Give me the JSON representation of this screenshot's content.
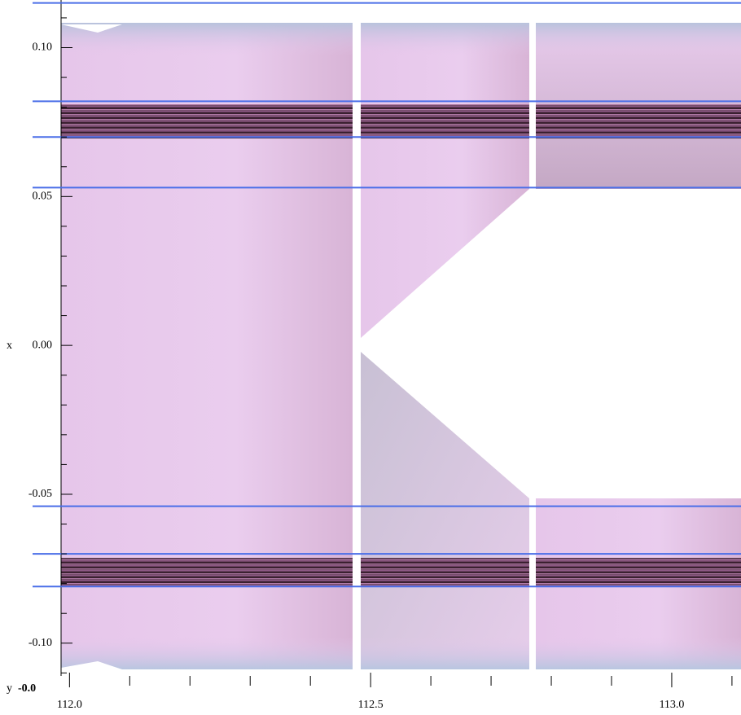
{
  "chart_data": {
    "type": "surface",
    "xlabel": "y",
    "ylabel": "x",
    "corner_label": "-0.0",
    "xlim": [
      111.986,
      113.115
    ],
    "ylim": [
      -0.111,
      0.116
    ],
    "xticks": [
      {
        "value": 112,
        "label": "112.0"
      },
      {
        "value": 112.5,
        "label": "112.5"
      },
      {
        "value": 113,
        "label": "113.0"
      }
    ],
    "xminorticks": [
      112.1,
      112.2,
      112.3,
      112.4,
      112.6,
      112.7,
      112.8,
      112.9,
      113.1
    ],
    "yticks": [
      {
        "value": 0.1,
        "label": "0.10"
      },
      0.05,
      {
        "value": 0,
        "label": "0.00"
      },
      -0.05,
      {
        "value": -0.1,
        "label": "-0.10"
      }
    ],
    "yminorticks": [
      0.11,
      0.09,
      0.08,
      0.07,
      0.06,
      0.04,
      0.03,
      0.02,
      0.01,
      -0.01,
      -0.02,
      -0.03,
      -0.04,
      -0.06,
      -0.07,
      -0.08,
      -0.09,
      -0.11
    ],
    "hlines": [
      0.115,
      0.082,
      0.07,
      0.053,
      -0.054,
      -0.07,
      -0.081
    ],
    "hline_color": "#4a6ee8"
  }
}
